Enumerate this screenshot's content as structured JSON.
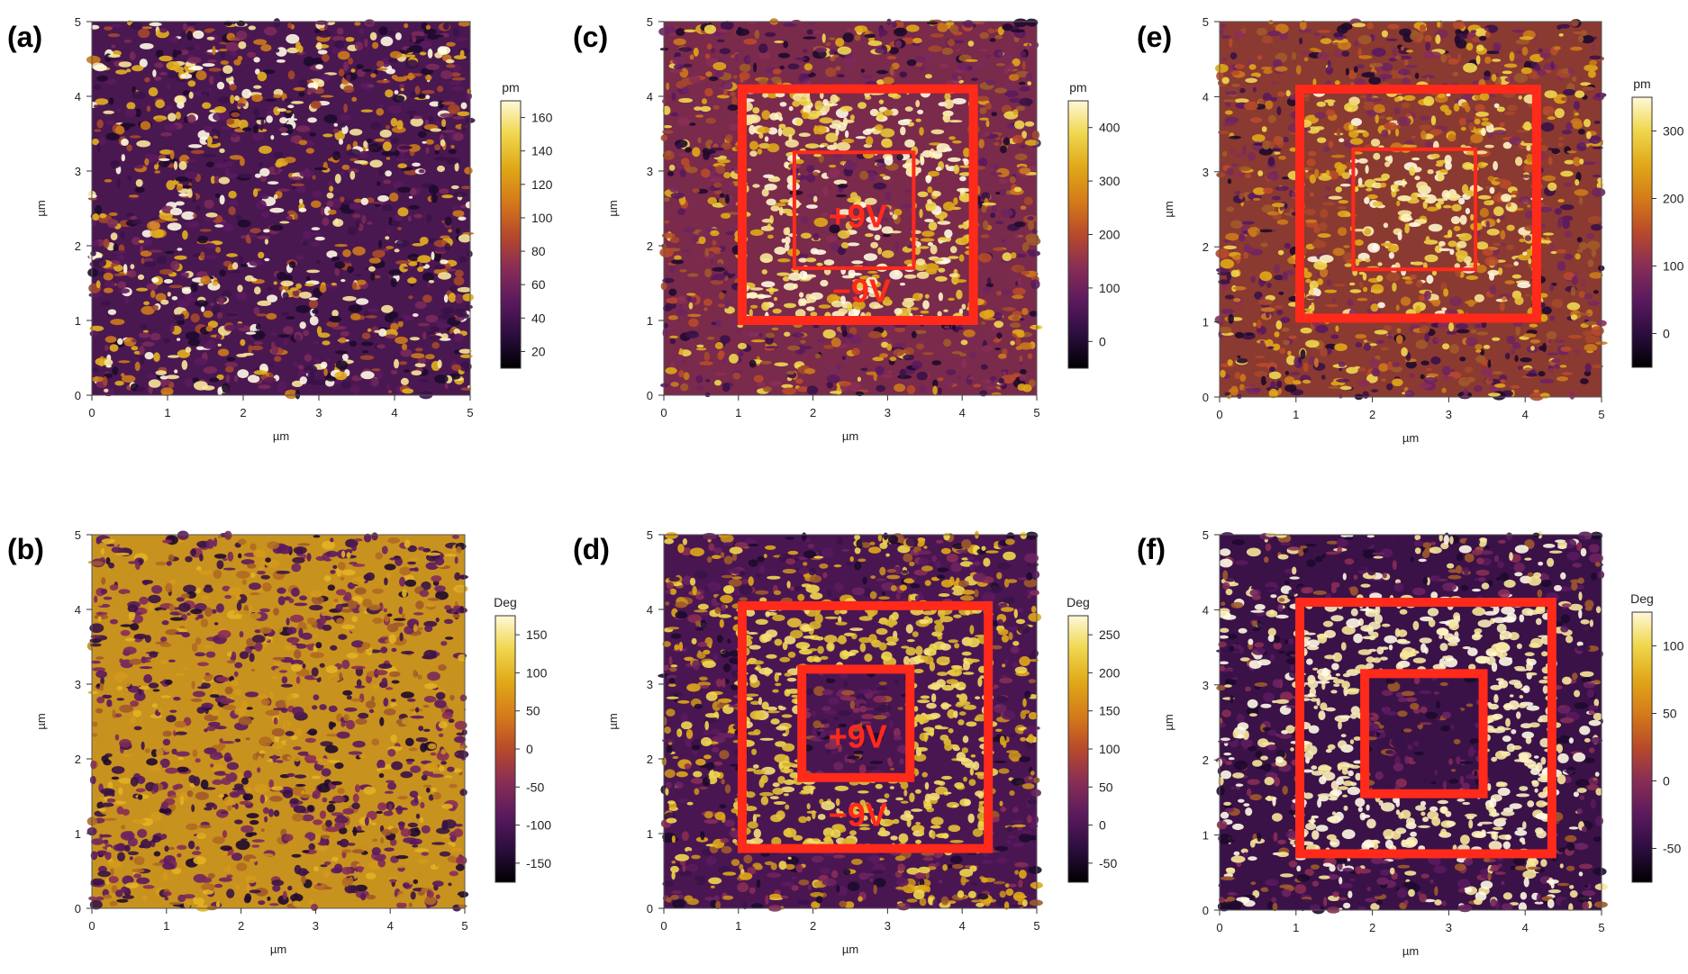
{
  "panels": [
    {
      "id": "a",
      "label": "(a)",
      "unit": "pm",
      "cb_ticks": [
        "20",
        "40",
        "60",
        "80",
        "100",
        "120",
        "140",
        "160"
      ],
      "xticks": [
        "0",
        "1",
        "2",
        "3",
        "4",
        "5"
      ],
      "yticks": [
        "0",
        "1",
        "2",
        "3",
        "4",
        "5"
      ],
      "xlabel": "µm",
      "ylabel": "µm",
      "texture": "amplitude-grainy",
      "annotations": []
    },
    {
      "id": "b",
      "label": "(b)",
      "unit": "Deg",
      "cb_ticks": [
        "-150",
        "-100",
        "-50",
        "0",
        "50",
        "100",
        "150"
      ],
      "xticks": [
        "0",
        "1",
        "2",
        "3",
        "4",
        "5"
      ],
      "yticks": [
        "0",
        "1",
        "2",
        "3",
        "4",
        "5"
      ],
      "xlabel": "µm",
      "ylabel": "µm",
      "texture": "phase-gold-purple",
      "annotations": []
    },
    {
      "id": "c",
      "label": "(c)",
      "unit": "pm",
      "cb_ticks": [
        "0",
        "100",
        "200",
        "300",
        "400"
      ],
      "xticks": [
        "0",
        "1",
        "2",
        "3",
        "4",
        "5"
      ],
      "yticks": [
        "0",
        "1",
        "2",
        "3",
        "4",
        "5"
      ],
      "xlabel": "µm",
      "ylabel": "µm",
      "texture": "amplitude-poled",
      "annotations": [
        "+9V",
        "−9V"
      ]
    },
    {
      "id": "d",
      "label": "(d)",
      "unit": "Deg",
      "cb_ticks": [
        "-50",
        "0",
        "50",
        "100",
        "150",
        "200",
        "250"
      ],
      "xticks": [
        "0",
        "1",
        "2",
        "3",
        "4",
        "5"
      ],
      "yticks": [
        "0",
        "1",
        "2",
        "3",
        "4",
        "5"
      ],
      "xlabel": "µm",
      "ylabel": "µm",
      "texture": "phase-poled",
      "annotations": [
        "+9V",
        "−9V"
      ]
    },
    {
      "id": "e",
      "label": "(e)",
      "unit": "pm",
      "cb_ticks": [
        "0",
        "100",
        "200",
        "300"
      ],
      "xticks": [
        "0",
        "1",
        "2",
        "3",
        "4",
        "5"
      ],
      "yticks": [
        "0",
        "1",
        "2",
        "3",
        "4",
        "5"
      ],
      "xlabel": "µm",
      "ylabel": "µm",
      "texture": "amplitude-poled-faded",
      "annotations": []
    },
    {
      "id": "f",
      "label": "(f)",
      "unit": "Deg",
      "cb_ticks": [
        "-50",
        "0",
        "50",
        "100"
      ],
      "xticks": [
        "0",
        "1",
        "2",
        "3",
        "4",
        "5"
      ],
      "yticks": [
        "0",
        "1",
        "2",
        "3",
        "4",
        "5"
      ],
      "xlabel": "µm",
      "ylabel": "µm",
      "texture": "phase-poled-bright",
      "annotations": []
    }
  ],
  "colors": {
    "frame": "#ff2a1a",
    "annotation": "#ff2a1a",
    "afmhot": [
      "#000000",
      "#2a0d3d",
      "#5a1a5e",
      "#8a2e55",
      "#b84a2a",
      "#d4791a",
      "#e0a818",
      "#f0d850",
      "#fff8d8"
    ]
  }
}
